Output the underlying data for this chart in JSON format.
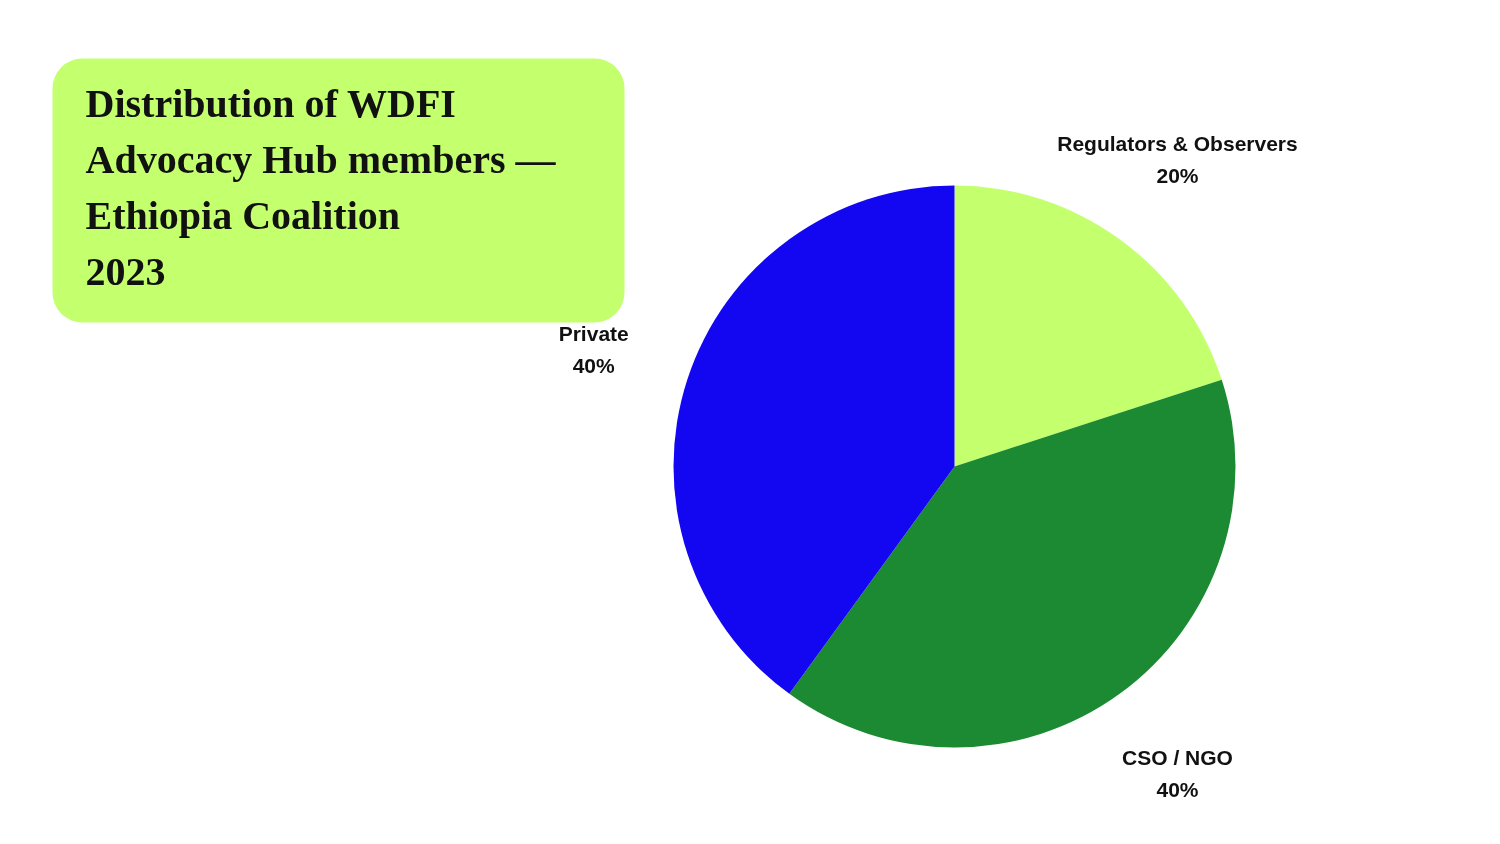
{
  "chart_data": {
    "type": "pie",
    "title": "Distribution of WDFI Advocacy Hub members — Ethiopia Coalition 2023",
    "categories": [
      "Regulators & Observers",
      "CSO / NGO",
      "Private"
    ],
    "values": [
      20,
      40,
      40
    ],
    "colors": [
      "#c4ff6e",
      "#1b8a32",
      "#1207f0"
    ],
    "value_labels": [
      "20%",
      "40%",
      "40%"
    ]
  }
}
